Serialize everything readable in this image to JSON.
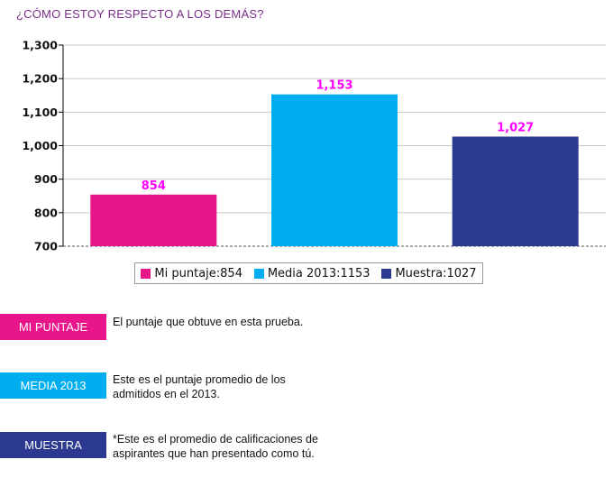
{
  "title": "¿CÓMO ESTOY RESPECTO A LOS DEMÁS?",
  "chart_data": {
    "type": "bar",
    "categories": [
      "Mi puntaje",
      "Media 2013",
      "Muestra"
    ],
    "values": [
      854,
      1153,
      1027
    ],
    "value_labels": [
      "854",
      "1,153",
      "1,027"
    ],
    "colors": [
      "#e8158b",
      "#00aeef",
      "#2b3990"
    ],
    "label_color": "#ff00ff",
    "ylim": [
      700,
      1300
    ],
    "yticks": [
      700,
      800,
      900,
      1000,
      1100,
      1200,
      1300
    ],
    "ytick_labels": [
      "700",
      "800",
      "900",
      "1,000",
      "1,100",
      "1,200",
      "1,300"
    ],
    "grid": true,
    "legend_position": "bottom",
    "legend": [
      "Mi puntaje:854",
      "Media 2013:1153",
      "Muestra:1027"
    ]
  },
  "key": [
    {
      "label": "MI PUNTAJE",
      "color": "#e8158b",
      "text": "El puntaje que obtuve en esta prueba."
    },
    {
      "label": "MEDIA 2013",
      "color": "#00aeef",
      "text": "Este es el puntaje promedio de los admitidos en el 2013."
    },
    {
      "label": "MUESTRA",
      "color": "#2b3990",
      "text": "*Este es el promedio de calificaciones de aspirantes que han presentado como tú."
    }
  ]
}
